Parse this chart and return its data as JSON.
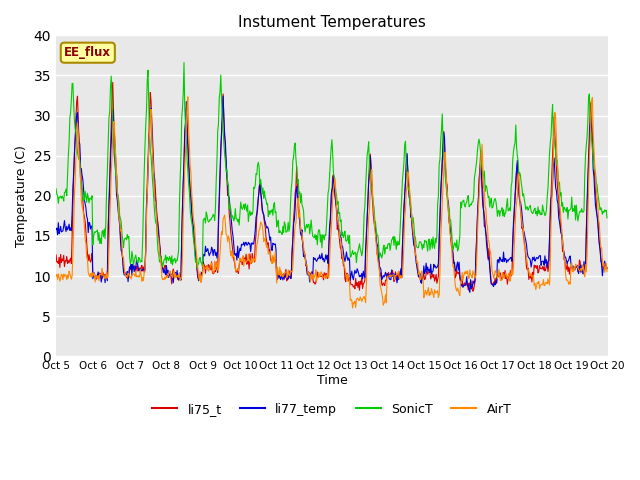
{
  "title": "Instument Temperatures",
  "xlabel": "Time",
  "ylabel": "Temperature (C)",
  "ylim": [
    0,
    40
  ],
  "yticks": [
    0,
    5,
    10,
    15,
    20,
    25,
    30,
    35,
    40
  ],
  "x_labels": [
    "Oct 5",
    "Oct 6",
    "Oct 7",
    "Oct 8",
    "Oct 9",
    "Oct 10",
    "Oct 11",
    "Oct 12",
    "Oct 13",
    "Oct 14",
    "Oct 15",
    "Oct 16",
    "Oct 17",
    "Oct 18",
    "Oct 19",
    "Oct 20"
  ],
  "annotation_text": "EE_flux",
  "annotation_color": "#8B0000",
  "annotation_bg": "#FFFFA0",
  "bg_color": "#E8E8E8",
  "colors": {
    "li75_t": "#DD0000",
    "li77_temp": "#0000DD",
    "SonicT": "#00CC00",
    "AirT": "#FF8800"
  },
  "legend_labels": [
    "li75_t",
    "li77_temp",
    "SonicT",
    "AirT"
  ],
  "num_days": 15,
  "points_per_day": 48
}
